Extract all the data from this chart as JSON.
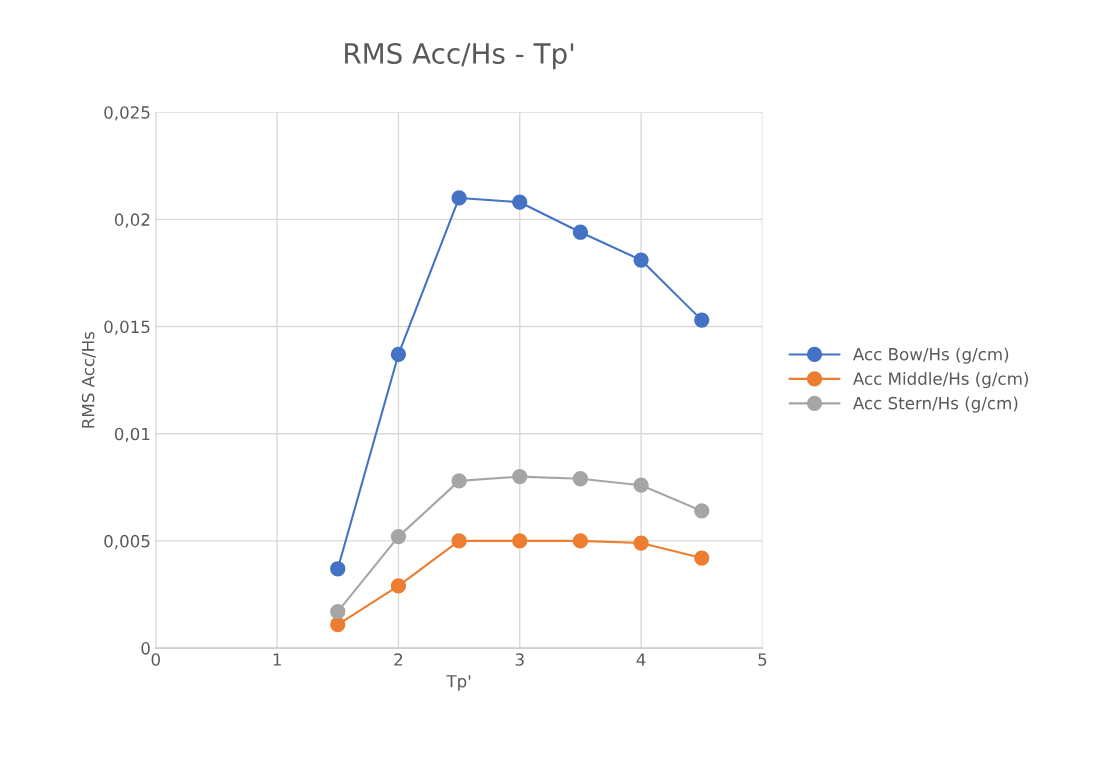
{
  "chart_data": {
    "type": "line",
    "title": "RMS Acc/Hs - Tp'",
    "xlabel": "Tp'",
    "ylabel": "RMS Acc/Hs",
    "x": [
      1.5,
      2,
      2.5,
      3,
      3.5,
      4,
      4.5
    ],
    "series": [
      {
        "name": "Acc Bow/Hs (g/cm)",
        "color": "#4472c4",
        "values": [
          0.0037,
          0.0137,
          0.021,
          0.0208,
          0.0194,
          0.0181,
          0.0153
        ]
      },
      {
        "name": "Acc Middle/Hs (g/cm)",
        "color": "#ed7d31",
        "values": [
          0.0011,
          0.0029,
          0.005,
          0.005,
          0.005,
          0.0049,
          0.0042
        ]
      },
      {
        "name": "Acc Stern/Hs (g/cm)",
        "color": "#a5a5a5",
        "values": [
          0.0017,
          0.0052,
          0.0078,
          0.008,
          0.0079,
          0.0076,
          0.0064
        ]
      }
    ],
    "xlim": [
      0,
      5
    ],
    "xticks": [
      0,
      1,
      2,
      3,
      4,
      5
    ],
    "ylim": [
      0,
      0.025
    ],
    "yticks": [
      {
        "value": 0,
        "label": "0"
      },
      {
        "value": 0.005,
        "label": "0,005"
      },
      {
        "value": 0.01,
        "label": "0,01"
      },
      {
        "value": 0.015,
        "label": "0,015"
      },
      {
        "value": 0.02,
        "label": "0,02"
      },
      {
        "value": 0.025,
        "label": "0,025"
      }
    ],
    "grid": true,
    "legend": "right",
    "marker": "circle",
    "line_style": "solid"
  }
}
